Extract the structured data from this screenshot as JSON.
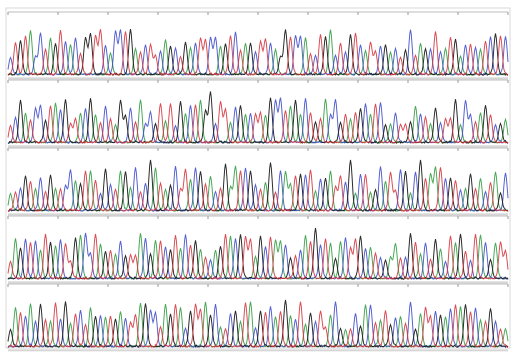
{
  "chart_data": {
    "type": "line",
    "title": "",
    "subtitle": "",
    "xlabel": "",
    "ylabel": "",
    "grid": false,
    "legend": "none",
    "series_colors": {
      "A": "#2c9a3c",
      "C": "#3a48c8",
      "G": "#222222",
      "T": "#d2303a"
    },
    "panels": [
      {
        "id": "row-1",
        "start": 1,
        "end": 100,
        "peaks": [
          "C",
          "T",
          "G",
          "T",
          "A",
          "C",
          "C",
          "T",
          "A",
          "G",
          "T",
          "C",
          "A",
          "C",
          "T",
          "G",
          "G",
          "T",
          "T",
          "C",
          "A",
          "C",
          "C",
          "T",
          "G",
          "A",
          "T",
          "C",
          "T",
          "T",
          "C",
          "A",
          "G",
          "C",
          "T",
          "G",
          "A",
          "C",
          "T",
          "T",
          "C",
          "C",
          "A",
          "G",
          "T",
          "C",
          "T",
          "A",
          "G",
          "C",
          "T",
          "T",
          "C",
          "A",
          "G",
          "G",
          "T",
          "C",
          "C",
          "A",
          "T",
          "C",
          "T",
          "G",
          "A",
          "C",
          "T",
          "C",
          "G",
          "T",
          "C",
          "A",
          "T",
          "T",
          "C",
          "G",
          "A",
          "C",
          "T",
          "G",
          "C",
          "T",
          "A",
          "G",
          "C",
          "T",
          "C",
          "A",
          "T",
          "G",
          "A",
          "C",
          "T",
          "C",
          "A",
          "T",
          "C",
          "G",
          "T",
          "C"
        ]
      },
      {
        "id": "row-2",
        "start": 101,
        "end": 200,
        "peaks": [
          "T",
          "C",
          "G",
          "A",
          "T",
          "C",
          "C",
          "G",
          "T",
          "A",
          "C",
          "G",
          "T",
          "T",
          "A",
          "C",
          "G",
          "A",
          "T",
          "C",
          "T",
          "A",
          "G",
          "G",
          "C",
          "T",
          "A",
          "C",
          "C",
          "G",
          "T",
          "A",
          "T",
          "C",
          "G",
          "A",
          "C",
          "T",
          "A",
          "G",
          "G",
          "C",
          "T",
          "T",
          "A",
          "C",
          "G",
          "A",
          "C",
          "T",
          "T",
          "A",
          "G",
          "C",
          "C",
          "T",
          "A",
          "G",
          "A",
          "C",
          "T",
          "G",
          "T",
          "A",
          "C",
          "C",
          "G",
          "T",
          "A",
          "T",
          "G",
          "C",
          "A",
          "T",
          "C",
          "G",
          "A",
          "C",
          "T",
          "T",
          "G",
          "A",
          "C",
          "T",
          "A",
          "G",
          "C",
          "T",
          "T",
          "G",
          "A",
          "C",
          "C",
          "T",
          "A",
          "G",
          "T",
          "C",
          "G",
          "A"
        ]
      },
      {
        "id": "row-3",
        "start": 201,
        "end": 300,
        "peaks": [
          "A",
          "T",
          "C",
          "G",
          "T",
          "A",
          "C",
          "T",
          "G",
          "A",
          "T",
          "C",
          "C",
          "A",
          "G",
          "T",
          "A",
          "T",
          "C",
          "G",
          "C",
          "T",
          "A",
          "G",
          "A",
          "C",
          "T",
          "C",
          "G",
          "A",
          "T",
          "A",
          "G",
          "C",
          "T",
          "T",
          "A",
          "C",
          "G",
          "T",
          "A",
          "C",
          "T",
          "G",
          "A",
          "A",
          "T",
          "C",
          "G",
          "C",
          "T",
          "A",
          "G",
          "T",
          "C",
          "A",
          "A",
          "T",
          "G",
          "C",
          "T",
          "A",
          "C",
          "G",
          "A",
          "T",
          "T",
          "C",
          "G",
          "A",
          "C",
          "T",
          "A",
          "G",
          "C",
          "A",
          "T",
          "T",
          "C",
          "G",
          "A",
          "C",
          "G",
          "T",
          "A",
          "A",
          "T",
          "C",
          "G",
          "T",
          "C",
          "A",
          "G",
          "T",
          "A",
          "C",
          "T",
          "A",
          "G",
          "C"
        ]
      },
      {
        "id": "row-4",
        "start": 301,
        "end": 400,
        "peaks": [
          "T",
          "A",
          "G",
          "C",
          "T",
          "C",
          "A",
          "T",
          "G",
          "A",
          "C",
          "T",
          "T",
          "G",
          "A",
          "C",
          "C",
          "T",
          "A",
          "G",
          "T",
          "A",
          "C",
          "G",
          "T",
          "T",
          "A",
          "C",
          "G",
          "A",
          "T",
          "C",
          "G",
          "T",
          "A",
          "C",
          "T",
          "G",
          "A",
          "T",
          "C",
          "A",
          "G",
          "T",
          "A",
          "C",
          "G",
          "T",
          "T",
          "A",
          "G",
          "C",
          "T",
          "A",
          "A",
          "C",
          "G",
          "T",
          "C",
          "A",
          "T",
          "G",
          "C",
          "T",
          "A",
          "G",
          "A",
          "C",
          "T",
          "T",
          "G",
          "C",
          "A",
          "T",
          "C",
          "G",
          "A",
          "A",
          "T",
          "C",
          "G",
          "T",
          "A",
          "C",
          "T",
          "G",
          "A",
          "C",
          "T",
          "A",
          "G",
          "T",
          "C",
          "T",
          "A",
          "C",
          "G",
          "A",
          "T",
          "T"
        ]
      },
      {
        "id": "row-5",
        "start": 401,
        "end": 500,
        "peaks": [
          "G",
          "A",
          "T",
          "C",
          "A",
          "C",
          "G",
          "T",
          "A",
          "T",
          "C",
          "G",
          "A",
          "T",
          "C",
          "T",
          "A",
          "G",
          "C",
          "A",
          "T",
          "G",
          "A",
          "C",
          "T",
          "T",
          "A",
          "G",
          "C",
          "C",
          "T",
          "A",
          "G",
          "T",
          "A",
          "C",
          "G",
          "T",
          "T",
          "A",
          "G",
          "C",
          "A",
          "T",
          "C",
          "G",
          "A",
          "T",
          "A",
          "C",
          "G",
          "T",
          "C",
          "A",
          "T",
          "G",
          "A",
          "C",
          "T",
          "A",
          "G",
          "C",
          "T",
          "T",
          "A",
          "C",
          "G",
          "A",
          "T",
          "C",
          "G",
          "A",
          "C",
          "T",
          "A",
          "T",
          "G",
          "C",
          "A",
          "T",
          "C",
          "G",
          "A",
          "T",
          "T",
          "C",
          "G",
          "A",
          "C",
          "T",
          "A",
          "G",
          "T",
          "C",
          "A",
          "T",
          "G",
          "C",
          "T",
          "A"
        ]
      }
    ]
  }
}
